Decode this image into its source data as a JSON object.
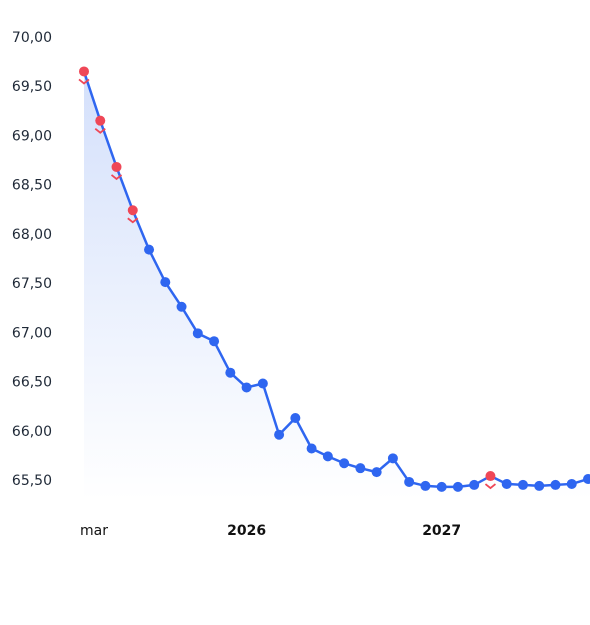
{
  "chart_data": {
    "type": "line",
    "title": "",
    "xlabel": "",
    "ylabel": "",
    "ylim": [
      65.3,
      70.0
    ],
    "y_ticks": [
      "70,00",
      "69,50",
      "69,00",
      "68,50",
      "68,00",
      "67,50",
      "67,00",
      "66,50",
      "66,00",
      "65,50"
    ],
    "x_ticks": [
      {
        "label": "mar",
        "index": 0,
        "bold": false
      },
      {
        "label": "2026",
        "index": 10,
        "bold": true
      },
      {
        "label": "2027",
        "index": 22,
        "bold": true
      }
    ],
    "grid": false,
    "series": [
      {
        "values": [
          69.65,
          69.15,
          68.68,
          68.24,
          67.84,
          67.51,
          67.26,
          66.99,
          66.91,
          66.59,
          66.44,
          66.48,
          65.96,
          66.13,
          65.82,
          65.74,
          65.67,
          65.62,
          65.58,
          65.72,
          65.48,
          65.44,
          65.43,
          65.43,
          65.45,
          65.54,
          65.46,
          65.45,
          65.44,
          65.45,
          65.46,
          65.51
        ],
        "highlighted_indices": [
          0,
          1,
          2,
          3,
          25
        ],
        "colors": {
          "line": "#2f66f0",
          "point": "#2f66f0",
          "highlight": "#ef4757",
          "area_top": "#d4e0fb",
          "area_bottom": "#ffffff"
        }
      }
    ]
  }
}
